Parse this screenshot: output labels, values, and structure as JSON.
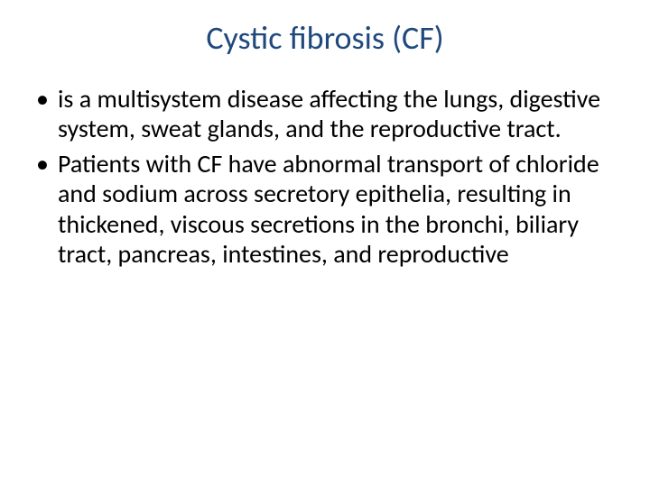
{
  "slide": {
    "title": "Cystic fibrosis (CF)",
    "title_color": "#1f497d",
    "title_fontsize": 36,
    "background_color": "#ffffff",
    "body_fontsize": 28,
    "body_color": "#000000",
    "bullets": [
      "is a multisystem disease affecting the lungs, digestive system, sweat glands, and the reproductive tract.",
      "Patients with CF have abnormal transport of chloride and sodium across secretory epithelia, resulting in thickened, viscous secretions in the bronchi, biliary tract, pancreas, intestines, and reproductive"
    ]
  }
}
